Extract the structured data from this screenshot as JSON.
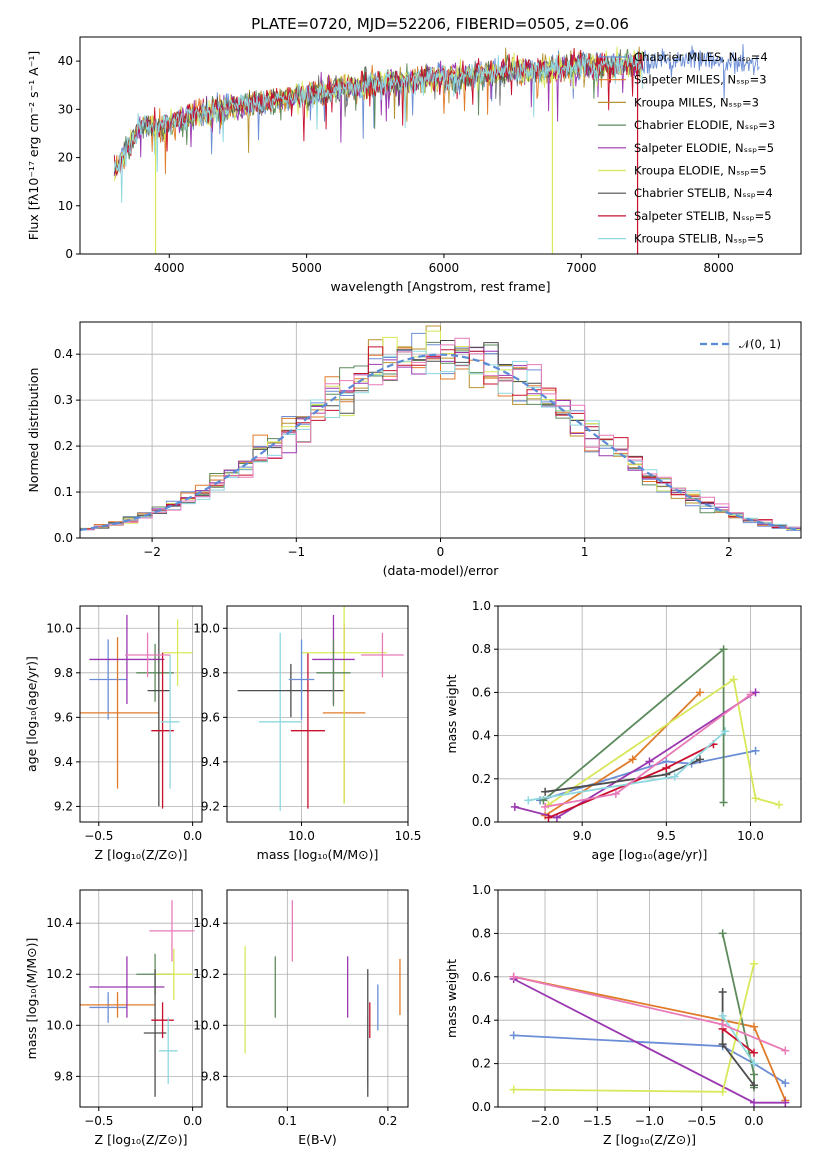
{
  "figure_title": "PLATE=0720, MJD=52206, FIBERID=0505, z=0.06",
  "colors": [
    "#6b8ed6",
    "#e07b2a",
    "#b8922e",
    "#5c8a5c",
    "#9a37b0",
    "#d8e85a",
    "#4d4d4d",
    "#c8102e",
    "#8fd8e0",
    "#e87ab8",
    "#cfd84a"
  ],
  "chart_data": [
    {
      "id": "spectrum",
      "type": "line",
      "xlabel": "wavelength [Angstrom, rest frame]",
      "ylabel": "Flux [fλ10⁻¹⁷ erg cm⁻² s⁻¹ A⁻¹]",
      "xlim": [
        3350,
        8600
      ],
      "ylim": [
        0,
        45
      ],
      "xticks": [
        "4000",
        "5000",
        "6000",
        "7000",
        "8000"
      ],
      "yticks": [
        "0",
        "10",
        "20",
        "30",
        "40"
      ],
      "legend_position": "upper-right",
      "legend": [
        "Chabrier MILES, Nₛₛₚ=4",
        "Salpeter MILES, Nₛₛₚ=3",
        "Kroupa MILES, Nₛₛₚ=3",
        "Chabrier ELODIE, Nₛₛₚ=3",
        "Salpeter ELODIE, Nₛₛₚ=5",
        "Kroupa ELODIE, Nₛₛₚ=5",
        "Chabrier STELIB, Nₛₛₚ=4",
        "Salpeter STELIB, Nₛₛₚ=5",
        "Kroupa STELIB, Nₛₛₚ=5"
      ],
      "legend_colors": [
        "#6b8ed6",
        "#e07b2a",
        "#b8922e",
        "#5c8a5c",
        "#9a37b0",
        "#d8e85a",
        "#4d4d4d",
        "#c8102e",
        "#8fd8e0"
      ],
      "continuum": [
        [
          3600,
          17
        ],
        [
          3700,
          22
        ],
        [
          3800,
          27
        ],
        [
          3900,
          26
        ],
        [
          4000,
          27
        ],
        [
          4200,
          29
        ],
        [
          4400,
          30
        ],
        [
          4600,
          31
        ],
        [
          4800,
          32
        ],
        [
          5000,
          33
        ],
        [
          5200,
          34
        ],
        [
          5400,
          35
        ],
        [
          5600,
          35.5
        ],
        [
          5800,
          36
        ],
        [
          6000,
          36.5
        ],
        [
          6200,
          37
        ],
        [
          6500,
          38
        ],
        [
          6800,
          38.5
        ],
        [
          7000,
          39
        ],
        [
          7200,
          39
        ],
        [
          7400,
          39.5
        ],
        [
          7800,
          40.5
        ],
        [
          8000,
          40
        ],
        [
          8300,
          39
        ]
      ],
      "drops": [
        [
          3900,
          0
        ],
        [
          6790,
          0
        ],
        [
          7410,
          0
        ]
      ]
    },
    {
      "id": "residuals",
      "type": "histogram",
      "xlabel": "(data-model)/error",
      "ylabel": "Normed distribution",
      "xlim": [
        -2.5,
        2.5
      ],
      "ylim": [
        0,
        0.47
      ],
      "xticks": [
        "−2",
        "−1",
        "0",
        "1",
        "2"
      ],
      "yticks": [
        "0.0",
        "0.1",
        "0.2",
        "0.3",
        "0.4"
      ],
      "legend": [
        "𝒩(0, 1)"
      ],
      "legend_position": "upper-right",
      "bin_width": 0.1,
      "n_histograms": 9
    },
    {
      "id": "age-vs-Z",
      "type": "errorbar",
      "xlabel": "Z [log₁₀(Z/Z⊙)]",
      "ylabel": "age  [log₁₀(age/yr)]",
      "xlim": [
        -0.6,
        0.05
      ],
      "ylim": [
        9.13,
        10.1
      ],
      "xticks": [
        "−0.5",
        "0.0"
      ],
      "yticks": [
        "9.2",
        "9.4",
        "9.6",
        "9.8",
        "10.0"
      ],
      "points": [
        {
          "x": -0.45,
          "y": 9.77,
          "xerr": 0.1,
          "yerr": 0.18,
          "color": "#6b8ed6"
        },
        {
          "x": -0.4,
          "y": 9.62,
          "xerr": 0.22,
          "yerr": 0.34,
          "color": "#e07b2a"
        },
        {
          "x": -0.2,
          "y": 9.8,
          "xerr": 0.1,
          "yerr": 0.13,
          "color": "#5c8a5c"
        },
        {
          "x": -0.35,
          "y": 9.86,
          "xerr": 0.2,
          "yerr": 0.2,
          "color": "#9a37b0"
        },
        {
          "x": -0.08,
          "y": 9.89,
          "xerr": 0.08,
          "yerr": 0.15,
          "color": "#d8e85a"
        },
        {
          "x": -0.18,
          "y": 9.72,
          "xerr": 0.06,
          "yerr": 0.52,
          "color": "#4d4d4d"
        },
        {
          "x": -0.16,
          "y": 9.54,
          "xerr": 0.06,
          "yerr": 0.35,
          "color": "#c8102e"
        },
        {
          "x": -0.12,
          "y": 9.58,
          "xerr": 0.05,
          "yerr": 0.3,
          "color": "#8fd8e0"
        },
        {
          "x": -0.24,
          "y": 9.88,
          "xerr": 0.12,
          "yerr": 0.1,
          "color": "#e87ab8"
        }
      ]
    },
    {
      "id": "age-vs-mass",
      "type": "errorbar",
      "xlabel": "mass [log₁₀(M/M⊙)]",
      "ylim": [
        9.13,
        10.1
      ],
      "xlim": [
        9.65,
        10.5
      ],
      "xticks": [
        "10.0",
        "10.5"
      ],
      "yticks": [
        "9.2",
        "9.4",
        "9.6",
        "9.8",
        "10.0"
      ],
      "points": [
        {
          "x": 9.9,
          "y": 9.58,
          "xerr": 0.1,
          "yerr": 0.4,
          "color": "#8fd8e0"
        },
        {
          "x": 9.95,
          "y": 9.72,
          "xerr": 0.25,
          "yerr": 0.12,
          "color": "#4d4d4d"
        },
        {
          "x": 10.03,
          "y": 9.54,
          "xerr": 0.08,
          "yerr": 0.35,
          "color": "#c8102e"
        },
        {
          "x": 10.2,
          "y": 9.62,
          "xerr": 0.1,
          "yerr": 0.4,
          "color": "#e07b2a"
        },
        {
          "x": 10.2,
          "y": 9.89,
          "xerr": 0.2,
          "yerr": 0.68,
          "color": "#d8e85a"
        },
        {
          "x": 10.15,
          "y": 9.86,
          "xerr": 0.1,
          "yerr": 0.2,
          "color": "#9a37b0"
        },
        {
          "x": 10.15,
          "y": 9.8,
          "xerr": 0.08,
          "yerr": 0.15,
          "color": "#5c8a5c"
        },
        {
          "x": 10.38,
          "y": 9.88,
          "xerr": 0.1,
          "yerr": 0.1,
          "color": "#e87ab8"
        },
        {
          "x": 10.0,
          "y": 9.77,
          "xerr": 0.06,
          "yerr": 0.18,
          "color": "#6b8ed6"
        }
      ]
    },
    {
      "id": "massweight-vs-age",
      "type": "line",
      "xlabel": "age  [log₁₀(age/yr)]",
      "ylabel": "mass weight",
      "xlim": [
        8.5,
        10.3
      ],
      "ylim": [
        0,
        1
      ],
      "xticks": [
        "9.0",
        "9.5",
        "10.0"
      ],
      "yticks": [
        "0.0",
        "0.2",
        "0.4",
        "0.6",
        "0.8",
        "1.0"
      ],
      "series": [
        {
          "color": "#6b8ed6",
          "x": [
            8.75,
            9.5,
            9.65,
            10.03
          ],
          "y": [
            0.1,
            0.28,
            0.27,
            0.33
          ]
        },
        {
          "color": "#e07b2a",
          "x": [
            8.78,
            9.3,
            9.7
          ],
          "y": [
            0.03,
            0.29,
            0.6
          ]
        },
        {
          "color": "#5c8a5c",
          "x": [
            8.77,
            9.84,
            9.84
          ],
          "y": [
            0.1,
            0.8,
            0.09
          ]
        },
        {
          "color": "#9a37b0",
          "x": [
            8.6,
            8.85,
            9.4,
            10.03
          ],
          "y": [
            0.07,
            0.02,
            0.28,
            0.6
          ]
        },
        {
          "color": "#d8e85a",
          "x": [
            8.8,
            9.9,
            10.03,
            10.17
          ],
          "y": [
            0.08,
            0.66,
            0.11,
            0.08
          ]
        },
        {
          "color": "#4d4d4d",
          "x": [
            8.78,
            9.5,
            9.7
          ],
          "y": [
            0.14,
            0.22,
            0.29
          ]
        },
        {
          "color": "#c8102e",
          "x": [
            8.8,
            9.5,
            9.78
          ],
          "y": [
            0.02,
            0.25,
            0.36
          ]
        },
        {
          "color": "#8fd8e0",
          "x": [
            8.68,
            9.55,
            9.85
          ],
          "y": [
            0.1,
            0.21,
            0.42
          ]
        },
        {
          "color": "#e87ab8",
          "x": [
            8.78,
            9.2,
            10.0
          ],
          "y": [
            0.07,
            0.13,
            0.59
          ]
        }
      ]
    },
    {
      "id": "mass-vs-Z",
      "type": "errorbar",
      "xlabel": "Z [log₁₀(Z/Z⊙)]",
      "ylabel": "mass [log₁₀(M/M⊙)]",
      "xlim": [
        -0.6,
        0.05
      ],
      "ylim": [
        9.68,
        10.53
      ],
      "xticks": [
        "−0.5",
        "0.0"
      ],
      "yticks": [
        "9.8",
        "10.0",
        "10.2",
        "10.4"
      ],
      "points": [
        {
          "x": -0.45,
          "y": 10.07,
          "xerr": 0.1,
          "yerr": 0.06,
          "color": "#6b8ed6"
        },
        {
          "x": -0.4,
          "y": 10.08,
          "xerr": 0.2,
          "yerr": 0.05,
          "color": "#e07b2a"
        },
        {
          "x": -0.35,
          "y": 10.15,
          "xerr": 0.2,
          "yerr": 0.12,
          "color": "#9a37b0"
        },
        {
          "x": -0.2,
          "y": 10.2,
          "xerr": 0.1,
          "yerr": 0.08,
          "color": "#5c8a5c"
        },
        {
          "x": -0.1,
          "y": 10.2,
          "xerr": 0.1,
          "yerr": 0.1,
          "color": "#d8e85a"
        },
        {
          "x": -0.2,
          "y": 9.97,
          "xerr": 0.06,
          "yerr": 0.25,
          "color": "#4d4d4d"
        },
        {
          "x": -0.16,
          "y": 10.02,
          "xerr": 0.06,
          "yerr": 0.07,
          "color": "#c8102e"
        },
        {
          "x": -0.13,
          "y": 9.9,
          "xerr": 0.05,
          "yerr": 0.13,
          "color": "#8fd8e0"
        },
        {
          "x": -0.11,
          "y": 10.37,
          "xerr": 0.12,
          "yerr": 0.12,
          "color": "#e87ab8"
        }
      ]
    },
    {
      "id": "mass-vs-ebv",
      "type": "errorbar",
      "xlabel": "E(B-V)",
      "xlim": [
        0.04,
        0.22
      ],
      "ylim": [
        9.68,
        10.53
      ],
      "xticks": [
        "0.1",
        "0.2"
      ],
      "yticks": [
        "9.8",
        "10.0",
        "10.2",
        "10.4"
      ],
      "points": [
        {
          "x": 0.058,
          "y": 10.1,
          "xerr": 0,
          "yerr": 0.21,
          "color": "#d8e85a"
        },
        {
          "x": 0.088,
          "y": 10.15,
          "xerr": 0,
          "yerr": 0.12,
          "color": "#5c8a5c"
        },
        {
          "x": 0.105,
          "y": 10.37,
          "xerr": 0,
          "yerr": 0.12,
          "color": "#e87ab8"
        },
        {
          "x": 0.16,
          "y": 10.15,
          "xerr": 0,
          "yerr": 0.12,
          "color": "#9a37b0"
        },
        {
          "x": 0.18,
          "y": 9.9,
          "xerr": 0,
          "yerr": 0.13,
          "color": "#8fd8e0"
        },
        {
          "x": 0.18,
          "y": 9.97,
          "xerr": 0,
          "yerr": 0.25,
          "color": "#4d4d4d"
        },
        {
          "x": 0.182,
          "y": 10.02,
          "xerr": 0,
          "yerr": 0.07,
          "color": "#c8102e"
        },
        {
          "x": 0.19,
          "y": 10.07,
          "xerr": 0,
          "yerr": 0.09,
          "color": "#6b8ed6"
        },
        {
          "x": 0.212,
          "y": 10.15,
          "xerr": 0,
          "yerr": 0.11,
          "color": "#e07b2a"
        }
      ]
    },
    {
      "id": "massweight-vs-Z",
      "type": "line",
      "xlabel": "Z [log₁₀(Z/Z⊙)]",
      "ylabel": "mass weight",
      "xlim": [
        -2.45,
        0.45
      ],
      "ylim": [
        0,
        1
      ],
      "xticks": [
        "−2.0",
        "−1.5",
        "−1.0",
        "−0.5",
        "0.0"
      ],
      "yticks": [
        "0.0",
        "0.2",
        "0.4",
        "0.6",
        "0.8",
        "1.0"
      ],
      "series": [
        {
          "color": "#6b8ed6",
          "x": [
            -2.3,
            -0.3,
            0.0,
            0.3
          ],
          "y": [
            0.33,
            0.28,
            0.2,
            0.11
          ]
        },
        {
          "color": "#e07b2a",
          "x": [
            -2.3,
            0.0,
            0.3
          ],
          "y": [
            0.6,
            0.37,
            0.03
          ]
        },
        {
          "color": "#5c8a5c",
          "x": [
            -0.3,
            0.0,
            0.0
          ],
          "y": [
            0.8,
            0.15,
            0.09
          ]
        },
        {
          "color": "#9a37b0",
          "x": [
            -2.3,
            0.0,
            0.3
          ],
          "y": [
            0.59,
            0.02,
            0.02
          ]
        },
        {
          "color": "#d8e85a",
          "x": [
            -2.3,
            -0.3,
            0.0
          ],
          "y": [
            0.08,
            0.07,
            0.66
          ]
        },
        {
          "color": "#4d4d4d",
          "x": [
            -0.3,
            -0.3,
            0.0
          ],
          "y": [
            0.53,
            0.29,
            0.1
          ]
        },
        {
          "color": "#c8102e",
          "x": [
            -0.3,
            0.0
          ],
          "y": [
            0.36,
            0.25
          ]
        },
        {
          "color": "#8fd8e0",
          "x": [
            -0.3,
            0.0
          ],
          "y": [
            0.42,
            0.2
          ]
        },
        {
          "color": "#e87ab8",
          "x": [
            -2.3,
            -0.3,
            0.3
          ],
          "y": [
            0.6,
            0.38,
            0.26
          ]
        }
      ]
    }
  ]
}
